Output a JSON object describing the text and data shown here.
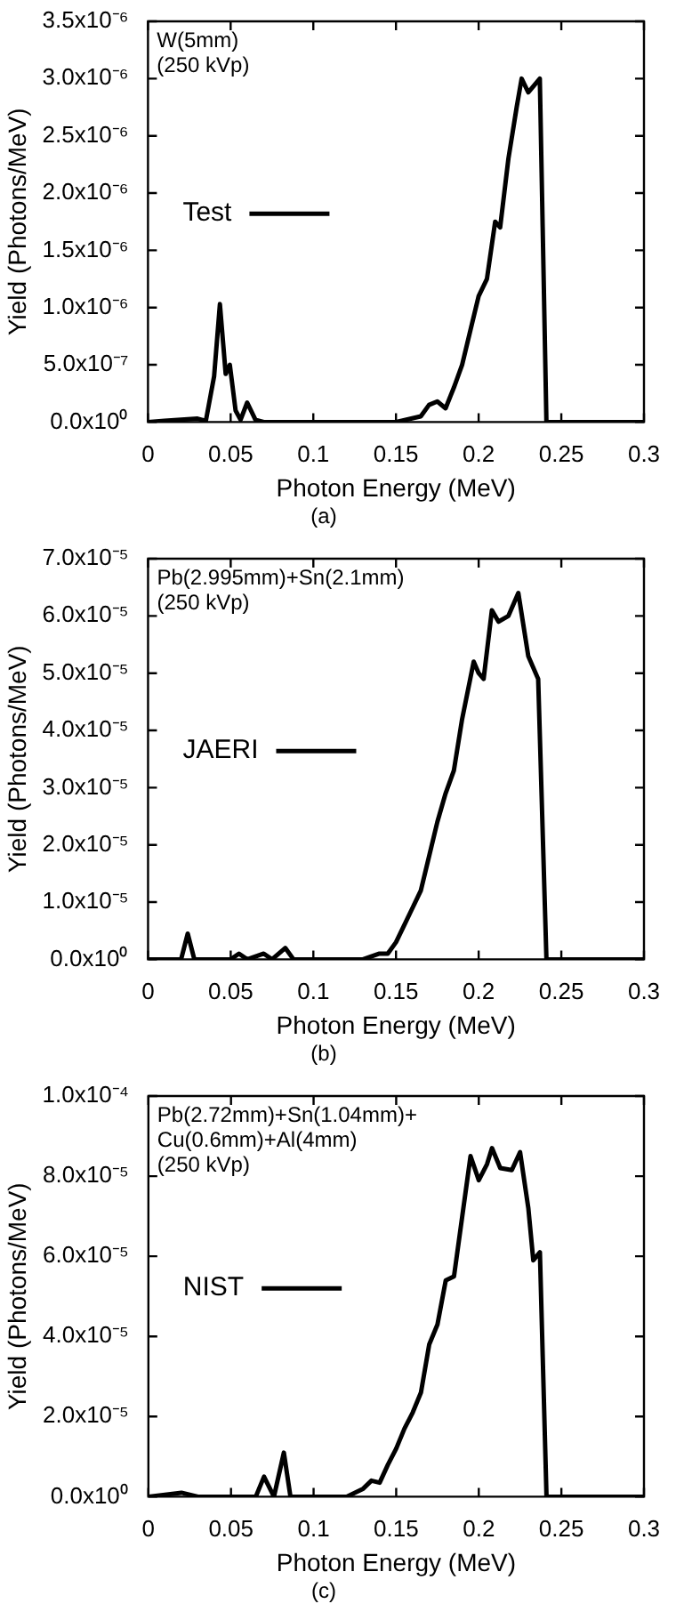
{
  "chart_data": [
    {
      "type": "line",
      "title": "(a)",
      "xlabel": "Photon Energy (MeV)",
      "ylabel": "Yield (Photons/MeV)",
      "annotations": [
        "W(5mm)",
        "(250 kVp)"
      ],
      "series": [
        {
          "name": "Test",
          "color": "#000000",
          "x": [
            0,
            0.01,
            0.02,
            0.03,
            0.035,
            0.04,
            0.0435,
            0.047,
            0.0495,
            0.053,
            0.056,
            0.06,
            0.065,
            0.07,
            0.1,
            0.15,
            0.165,
            0.17,
            0.175,
            0.18,
            0.185,
            0.19,
            0.195,
            0.2,
            0.205,
            0.21,
            0.213,
            0.218,
            0.223,
            0.226,
            0.23,
            0.237,
            0.241,
            0.3
          ],
          "values": [
            0,
            1e-08,
            2e-08,
            3e-08,
            1e-08,
            4e-07,
            1.03e-06,
            4.2e-07,
            5e-07,
            1e-07,
            2e-08,
            1.7e-07,
            2e-08,
            0,
            0,
            0,
            5e-08,
            1.5e-07,
            1.8e-07,
            1.2e-07,
            3e-07,
            5e-07,
            8e-07,
            1.1e-06,
            1.25e-06,
            1.75e-06,
            1.7e-06,
            2.3e-06,
            2.75e-06,
            3e-06,
            2.88e-06,
            3e-06,
            0,
            0
          ]
        }
      ],
      "xlim": [
        0,
        0.3
      ],
      "xticks": [
        0,
        0.05,
        0.1,
        0.15,
        0.2,
        0.25,
        0.3
      ],
      "ylim": [
        0,
        3.5e-06
      ],
      "yticks": [
        {
          "value": 0,
          "label": "0.0x10⁰"
        },
        {
          "value": 5e-07,
          "label": "5.0x10⁻⁷"
        },
        {
          "value": 1e-06,
          "label": "1.0x10⁻⁶"
        },
        {
          "value": 1.5e-06,
          "label": "1.5x10⁻⁶"
        },
        {
          "value": 2e-06,
          "label": "2.0x10⁻⁶"
        },
        {
          "value": 2.5e-06,
          "label": "2.5x10⁻⁶"
        },
        {
          "value": 3e-06,
          "label": "3.0x10⁻⁶"
        },
        {
          "value": 3.5e-06,
          "label": "3.5x10⁻⁶"
        }
      ],
      "legend": "left"
    },
    {
      "type": "line",
      "title": "(b)",
      "xlabel": "Photon Energy (MeV)",
      "ylabel": "Yield (Photons/MeV)",
      "annotations": [
        "Pb(2.995mm)+Sn(2.1mm)",
        "(250 kVp)"
      ],
      "series": [
        {
          "name": "JAERI",
          "color": "#000000",
          "x": [
            0,
            0.02,
            0.024,
            0.028,
            0.05,
            0.055,
            0.06,
            0.07,
            0.075,
            0.083,
            0.088,
            0.13,
            0.14,
            0.145,
            0.15,
            0.155,
            0.16,
            0.165,
            0.17,
            0.175,
            0.18,
            0.185,
            0.19,
            0.197,
            0.2,
            0.203,
            0.208,
            0.212,
            0.218,
            0.224,
            0.23,
            0.236,
            0.241,
            0.3
          ],
          "values": [
            0,
            0,
            4.5e-06,
            0,
            0,
            1e-06,
            0,
            1e-06,
            0,
            2e-06,
            0,
            0,
            1e-06,
            1e-06,
            3e-06,
            6e-06,
            9e-06,
            1.2e-05,
            1.8e-05,
            2.4e-05,
            2.9e-05,
            3.3e-05,
            4.2e-05,
            5.2e-05,
            5e-05,
            4.9e-05,
            6.1e-05,
            5.9e-05,
            6e-05,
            6.4e-05,
            5.3e-05,
            4.9e-05,
            0,
            0
          ]
        }
      ],
      "xlim": [
        0,
        0.3
      ],
      "xticks": [
        0,
        0.05,
        0.1,
        0.15,
        0.2,
        0.25,
        0.3
      ],
      "ylim": [
        0,
        7e-05
      ],
      "yticks": [
        {
          "value": 0,
          "label": "0.0x10⁰"
        },
        {
          "value": 1e-05,
          "label": "1.0x10⁻⁵"
        },
        {
          "value": 2e-05,
          "label": "2.0x10⁻⁵"
        },
        {
          "value": 3e-05,
          "label": "3.0x10⁻⁵"
        },
        {
          "value": 4e-05,
          "label": "4.0x10⁻⁵"
        },
        {
          "value": 5e-05,
          "label": "5.0x10⁻⁵"
        },
        {
          "value": 6e-05,
          "label": "6.0x10⁻⁵"
        },
        {
          "value": 7e-05,
          "label": "7.0x10⁻⁵"
        }
      ],
      "legend": "left"
    },
    {
      "type": "line",
      "title": "(c)",
      "xlabel": "Photon Energy (MeV)",
      "ylabel": "Yield (Photons/MeV)",
      "annotations": [
        "Pb(2.72mm)+Sn(1.04mm)+",
        "Cu(0.6mm)+Al(4mm)",
        "(250 kVp)"
      ],
      "series": [
        {
          "name": "NIST",
          "color": "#000000",
          "x": [
            0,
            0.02,
            0.03,
            0.065,
            0.07,
            0.076,
            0.082,
            0.086,
            0.12,
            0.13,
            0.135,
            0.14,
            0.145,
            0.15,
            0.155,
            0.16,
            0.165,
            0.17,
            0.175,
            0.18,
            0.185,
            0.19,
            0.195,
            0.2,
            0.205,
            0.208,
            0.213,
            0.22,
            0.225,
            0.23,
            0.233,
            0.237,
            0.241,
            0.3
          ],
          "values": [
            0,
            1e-06,
            0,
            0,
            5e-06,
            0,
            1.1e-05,
            0,
            0,
            2e-06,
            4e-06,
            3.5e-06,
            8e-06,
            1.2e-05,
            1.7e-05,
            2.1e-05,
            2.6e-05,
            3.8e-05,
            4.3e-05,
            5.4e-05,
            5.5e-05,
            7e-05,
            8.5e-05,
            7.9e-05,
            8.3e-05,
            8.7e-05,
            8.2e-05,
            8.15e-05,
            8.6e-05,
            7.2e-05,
            5.9e-05,
            6.1e-05,
            0,
            0
          ]
        }
      ],
      "xlim": [
        0,
        0.3
      ],
      "xticks": [
        0,
        0.05,
        0.1,
        0.15,
        0.2,
        0.25,
        0.3
      ],
      "ylim": [
        0,
        0.0001
      ],
      "yticks": [
        {
          "value": 0,
          "label": "0.0x10⁰"
        },
        {
          "value": 2e-05,
          "label": "2.0x10⁻⁵"
        },
        {
          "value": 4e-05,
          "label": "4.0x10⁻⁵"
        },
        {
          "value": 6e-05,
          "label": "6.0x10⁻⁵"
        },
        {
          "value": 8e-05,
          "label": "8.0x10⁻⁵"
        },
        {
          "value": 0.0001,
          "label": "1.0x10⁻⁴"
        }
      ],
      "legend": "left"
    }
  ]
}
